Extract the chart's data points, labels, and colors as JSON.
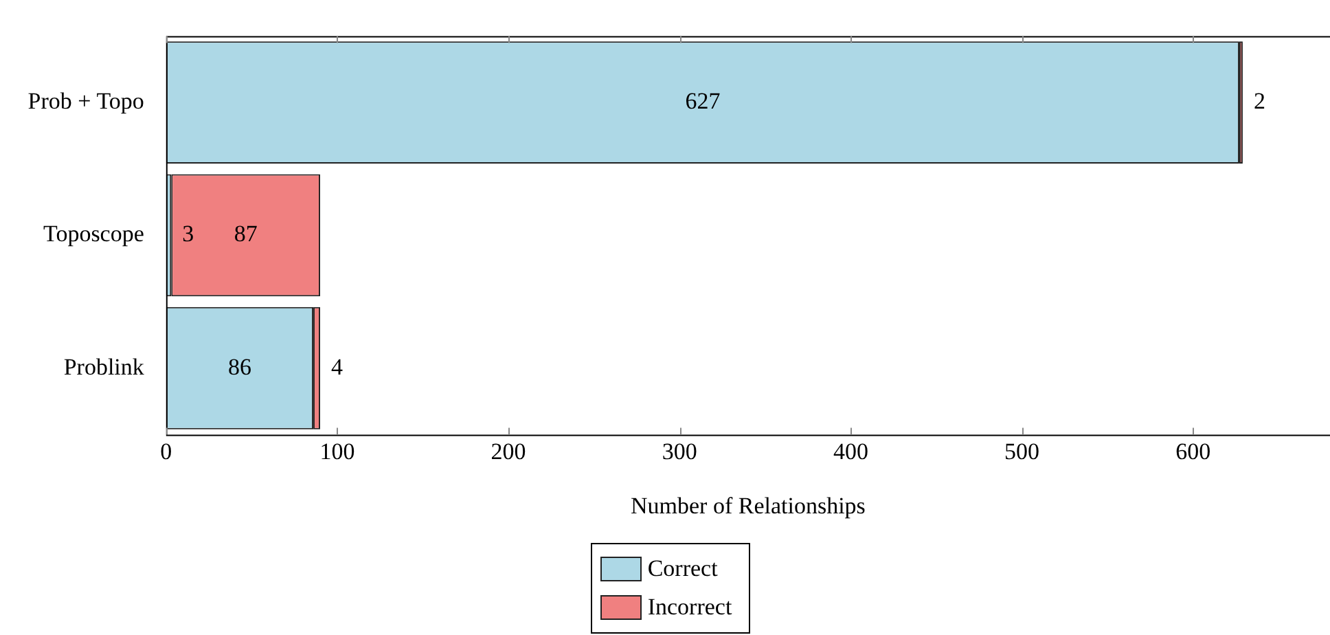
{
  "chart_data": {
    "type": "bar",
    "orientation": "horizontal",
    "stacked": true,
    "xlabel": "Number of Relationships",
    "categories": [
      "Prob + Topo",
      "Toposcope",
      "Problink"
    ],
    "series": [
      {
        "name": "Correct",
        "color": "#add8e6",
        "values": [
          627,
          3,
          86
        ]
      },
      {
        "name": "Incorrect",
        "color": "#f08080",
        "values": [
          2,
          87,
          4
        ]
      }
    ],
    "xlim": [
      0,
      680
    ],
    "xticks": [
      0,
      100,
      200,
      300,
      400,
      500,
      600
    ],
    "data_labels": true,
    "grid": false,
    "legend": "bottom"
  }
}
